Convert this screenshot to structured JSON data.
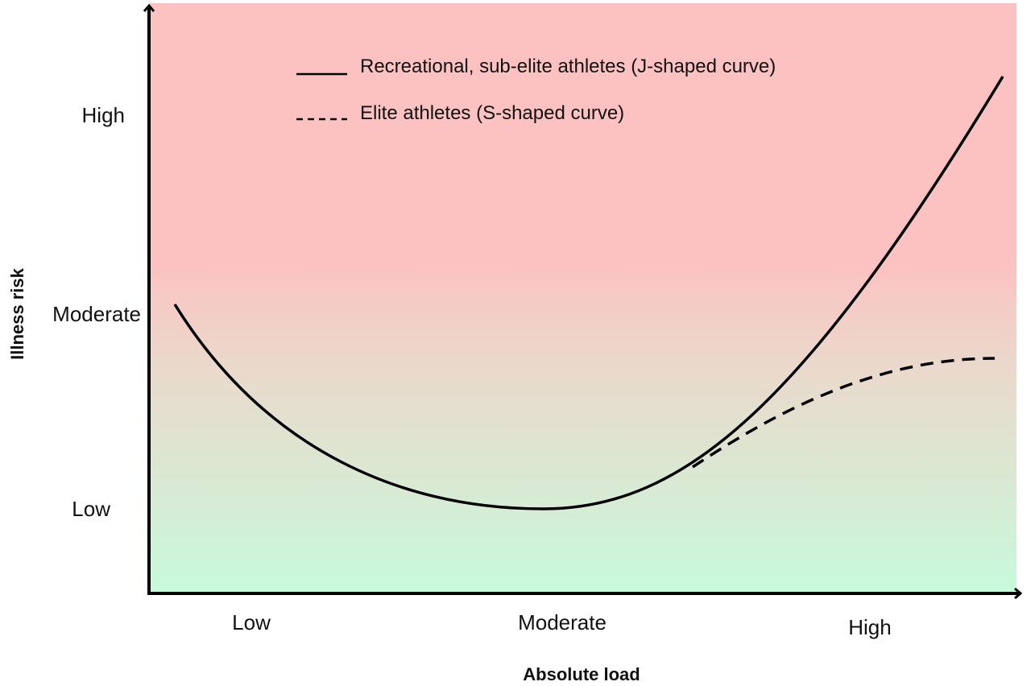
{
  "y_axis": {
    "title": "Illness risk",
    "ticks": [
      "High",
      "Moderate",
      "Low"
    ]
  },
  "x_axis": {
    "title": "Absolute load",
    "ticks": [
      "Low",
      "Moderate",
      "High"
    ]
  },
  "legend": [
    {
      "label": "Recreational, sub-elite athletes (J-shaped curve)",
      "style": "solid"
    },
    {
      "label": "Elite athletes (S-shaped curve)",
      "style": "dashed"
    }
  ],
  "colors": {
    "high_risk_zone": "#fcc2c2",
    "low_risk_zone": "#c8fadc",
    "curve": "#000000"
  }
}
